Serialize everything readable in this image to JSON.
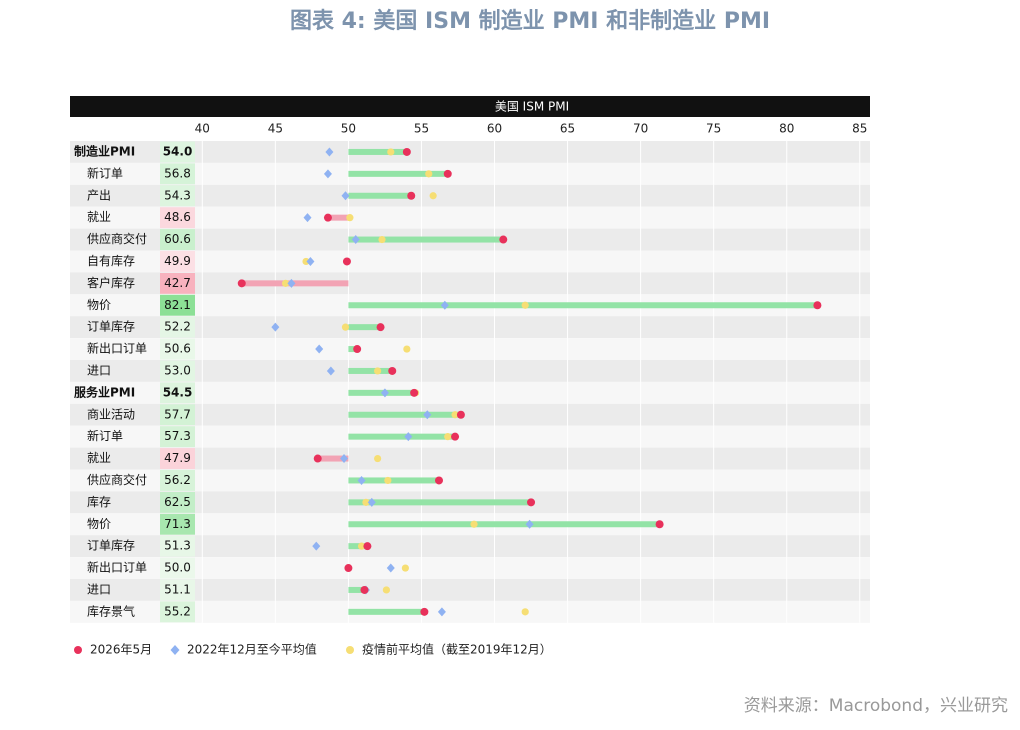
{
  "chart_data": {
    "type": "dumbbell",
    "title": "图表 4: 美国 ISM 制造业 PMI 和非制造业 PMI",
    "subtitle": "美国 ISM PMI",
    "source": "资料来源：Macrobond，兴业研究",
    "categories": [
      "制造业PMI",
      "新订单",
      "产出",
      "就业",
      "供应商交付",
      "自有库存",
      "客户库存",
      "物价",
      "订单库存",
      "新出口订单",
      "进口",
      "服务业PMI",
      "商业活动",
      "新订单",
      "就业",
      "供应商交付",
      "库存",
      "物价",
      "订单库存",
      "新出口订单",
      "进口",
      "库存景气"
    ],
    "header_rows": [
      0,
      11
    ],
    "baseline": 50,
    "bar_colors": {
      "above": "#93e3a6",
      "below": "#f2a3b4"
    },
    "series": [
      {
        "name": "2026年5月",
        "color": "#e8315b",
        "values": [
          54.0,
          56.8,
          54.3,
          48.6,
          60.6,
          49.9,
          42.7,
          82.1,
          52.2,
          50.6,
          53.0,
          54.5,
          57.7,
          57.3,
          47.9,
          56.2,
          62.5,
          71.3,
          51.3,
          50.0,
          51.1,
          55.2
        ],
        "value_labels": [
          "54.0",
          "56.8",
          "54.3",
          "48.6",
          "60.6",
          "49.9",
          "42.7",
          "82.1",
          "52.2",
          "50.6",
          "53.0",
          "54.5",
          "57.7",
          "57.3",
          "47.9",
          "56.2",
          "62.5",
          "71.3",
          "51.3",
          "50.0",
          "51.1",
          "55.2"
        ]
      },
      {
        "name": "2022年12月至今平均值",
        "color": "#8fb2f2",
        "values": [
          48.7,
          48.6,
          49.8,
          47.2,
          50.5,
          47.4,
          46.1,
          56.6,
          45.0,
          48.0,
          48.8,
          52.5,
          55.4,
          54.1,
          49.7,
          50.9,
          51.6,
          62.4,
          47.8,
          52.9,
          51.2,
          56.4
        ]
      },
      {
        "name": "疫情前平均值（截至2019年12月）",
        "color": "#f6de74",
        "values": [
          52.9,
          55.5,
          55.8,
          50.1,
          52.3,
          47.1,
          45.7,
          62.1,
          49.8,
          54.0,
          52.0,
          54.6,
          57.3,
          56.8,
          52.0,
          52.7,
          51.2,
          58.6,
          50.9,
          53.9,
          52.6,
          62.1
        ]
      }
    ],
    "xlim": [
      39.5,
      85.7
    ],
    "xticks": [
      40,
      45,
      50,
      55,
      60,
      65,
      70,
      75,
      80,
      85
    ]
  }
}
